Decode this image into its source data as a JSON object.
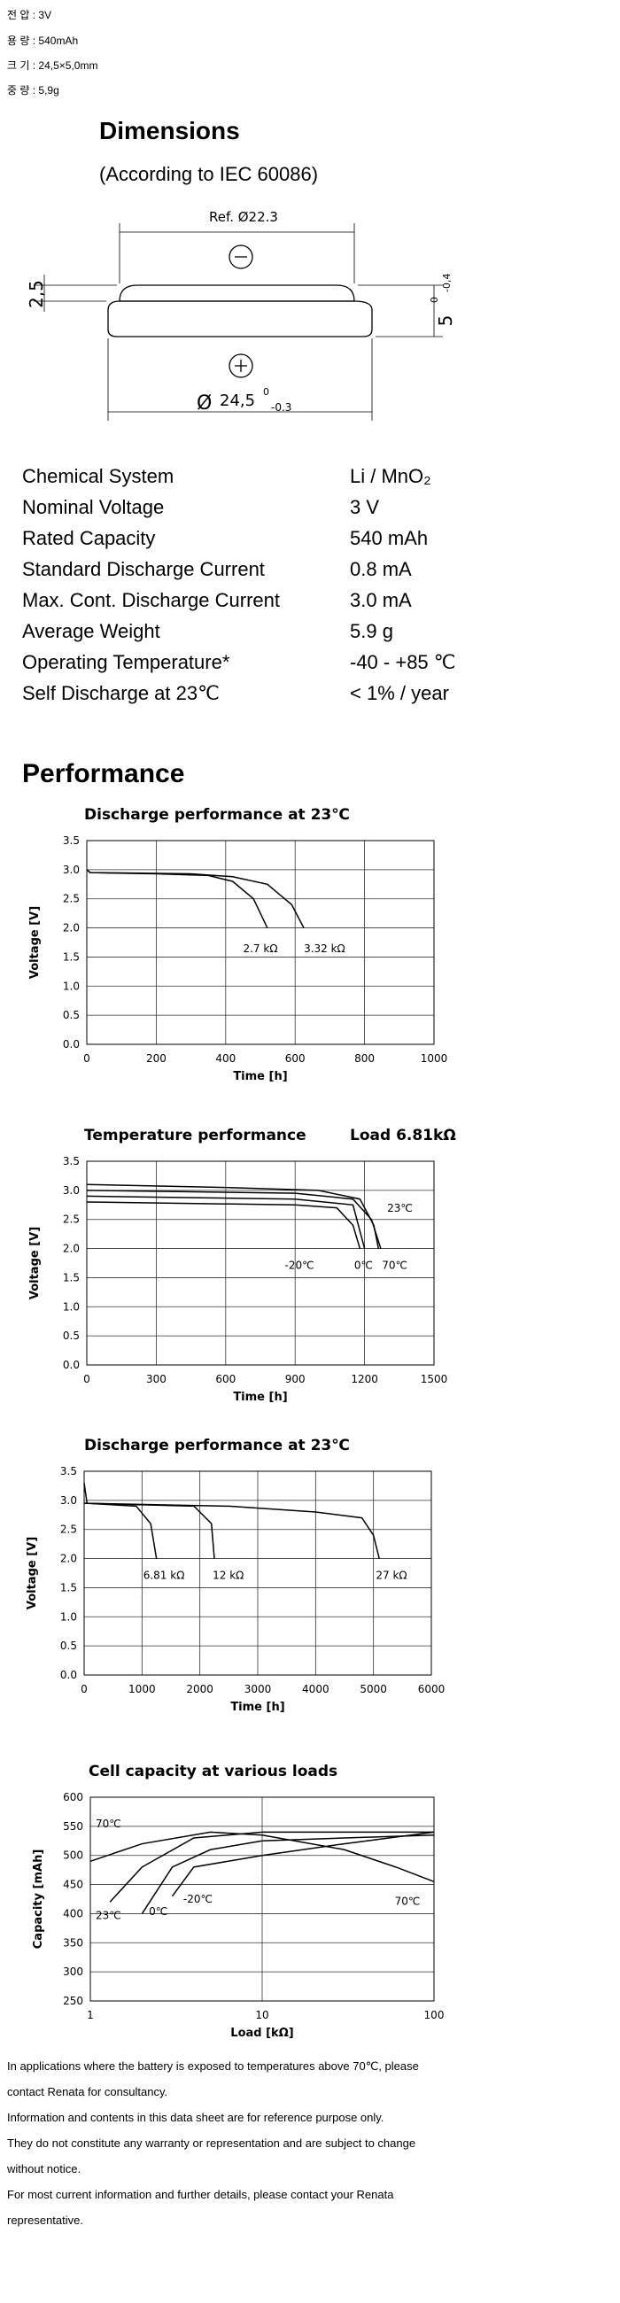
{
  "specs_korean": [
    "전 압 : 3V",
    "용 량 : 540mAh",
    "크 기 : 24,5×5,0mm",
    "중 량 : 5,9g"
  ],
  "dimensions": {
    "title": "Dimensions",
    "subtitle": "(According to IEC 60086)",
    "ref_diameter": "Ref. Ø22.3",
    "cap_height": "2,5",
    "height": "5",
    "height_tol_upper": "0",
    "height_tol_lower": "-0,4",
    "diameter_symbol": "Ø",
    "diameter": "24,5",
    "diameter_tol_upper": "0",
    "diameter_tol_lower": "-0.3"
  },
  "properties": [
    [
      "Chemical System",
      "Li / MnO₂"
    ],
    [
      "Nominal Voltage",
      "3 V"
    ],
    [
      "Rated Capacity",
      "540 mAh"
    ],
    [
      "Standard Discharge Current",
      "0.8 mA"
    ],
    [
      "Max. Cont. Discharge Current",
      "3.0 mA"
    ],
    [
      "Average Weight",
      "5.9 g"
    ],
    [
      "Operating Temperature*",
      "-40 - +85 ℃"
    ],
    [
      "Self Discharge at 23℃",
      "< 1% / year"
    ]
  ],
  "performance_title": "Performance",
  "chart_data": [
    {
      "type": "line",
      "title": "Discharge performance at 23℃",
      "x_label": "Time [h]",
      "y_label": "Voltage [V]",
      "xlim": [
        0,
        1000
      ],
      "xticks": [
        0,
        200,
        400,
        600,
        800,
        1000
      ],
      "ylim": [
        0,
        3.5
      ],
      "yticks": [
        {
          "value": 0,
          "label": "0.0"
        },
        0.5,
        {
          "value": 1,
          "label": "1.0"
        },
        1.5,
        {
          "value": 2,
          "label": "2.0"
        },
        2.5,
        {
          "value": 3,
          "label": "3.0"
        },
        3.5
      ],
      "grid": true,
      "series": [
        {
          "name": "2.7 kΩ",
          "color": "#000000",
          "x": [
            0,
            10,
            200,
            350,
            420,
            480,
            520
          ],
          "values": [
            3.0,
            2.95,
            2.93,
            2.9,
            2.8,
            2.5,
            2.0
          ]
        },
        {
          "name": "3.32 kΩ",
          "color": "#000000",
          "x": [
            0,
            10,
            300,
            420,
            520,
            590,
            625
          ],
          "values": [
            3.0,
            2.95,
            2.93,
            2.88,
            2.75,
            2.4,
            2.0
          ]
        }
      ]
    },
    {
      "type": "line",
      "title": "Temperature performance",
      "subtitle": "Load 6.81kΩ",
      "x_label": "Time [h]",
      "y_label": "Voltage [V]",
      "xlim": [
        0,
        1500
      ],
      "xticks": [
        0,
        300,
        600,
        900,
        1200,
        1500
      ],
      "ylim": [
        0,
        3.5
      ],
      "yticks": [
        {
          "value": 0,
          "label": "0.0"
        },
        0.5,
        {
          "value": 1,
          "label": "1.0"
        },
        1.5,
        {
          "value": 2,
          "label": "2.0"
        },
        2.5,
        {
          "value": 3,
          "label": "3.0"
        },
        3.5
      ],
      "grid": true,
      "series": [
        {
          "name": "23℃",
          "color": "#000000",
          "x": [
            0,
            600,
            1000,
            1180,
            1240,
            1260
          ],
          "values": [
            3.1,
            3.05,
            3.0,
            2.85,
            2.4,
            2.0
          ]
        },
        {
          "name": "-20℃",
          "color": "#000000",
          "x": [
            0,
            900,
            1080,
            1150,
            1180
          ],
          "values": [
            2.8,
            2.75,
            2.7,
            2.4,
            2.0
          ]
        },
        {
          "name": "0℃",
          "color": "#000000",
          "x": [
            0,
            900,
            1150,
            1200
          ],
          "values": [
            2.9,
            2.85,
            2.75,
            2.0
          ]
        },
        {
          "name": "70℃",
          "color": "#000000",
          "x": [
            0,
            900,
            1150,
            1230,
            1270
          ],
          "values": [
            3.0,
            2.95,
            2.85,
            2.5,
            2.0
          ]
        }
      ]
    },
    {
      "type": "line",
      "title": "Discharge performance at 23℃",
      "x_label": "Time [h]",
      "y_label": "Voltage [V]",
      "xlim": [
        0,
        6000
      ],
      "xticks": [
        0,
        1000,
        2000,
        3000,
        4000,
        5000,
        6000
      ],
      "ylim": [
        0,
        3.5
      ],
      "yticks": [
        {
          "value": 0,
          "label": "0.0"
        },
        0.5,
        {
          "value": 1,
          "label": "1.0"
        },
        1.5,
        {
          "value": 2,
          "label": "2.0"
        },
        2.5,
        {
          "value": 3,
          "label": "3.0"
        },
        3.5
      ],
      "grid": true,
      "series": [
        {
          "name": "6.81 kΩ",
          "color": "#000000",
          "x": [
            0,
            50,
            900,
            1150,
            1250
          ],
          "values": [
            3.3,
            2.95,
            2.9,
            2.6,
            2.0
          ]
        },
        {
          "name": "12 kΩ",
          "color": "#000000",
          "x": [
            0,
            1900,
            2200,
            2250
          ],
          "values": [
            2.95,
            2.9,
            2.6,
            2.0
          ]
        },
        {
          "name": "27 kΩ",
          "color": "#000000",
          "x": [
            0,
            2500,
            4000,
            4800,
            5000,
            5100
          ],
          "values": [
            2.95,
            2.9,
            2.8,
            2.7,
            2.4,
            2.0
          ]
        }
      ]
    },
    {
      "type": "line",
      "title": "Cell capacity at various loads",
      "x_label": "Load [kΩ]",
      "y_label": "Capacity [mAh]",
      "log_x": true,
      "xlim": [
        1,
        100
      ],
      "xticks": [
        1,
        10,
        100
      ],
      "ylim": [
        250,
        600
      ],
      "yticks": [
        250,
        300,
        350,
        400,
        450,
        500,
        550,
        600
      ],
      "grid": true,
      "series": [
        {
          "name": "70℃",
          "color": "#000000",
          "x": [
            1,
            2,
            5,
            10,
            30,
            60,
            100
          ],
          "values": [
            490,
            520,
            540,
            535,
            510,
            480,
            455
          ]
        },
        {
          "name": "23℃",
          "color": "#000000",
          "x": [
            1.3,
            2,
            4,
            10,
            100
          ],
          "values": [
            420,
            480,
            530,
            540,
            540
          ]
        },
        {
          "name": "0℃",
          "color": "#000000",
          "x": [
            2,
            3,
            5,
            10,
            30,
            100
          ],
          "values": [
            400,
            480,
            510,
            525,
            530,
            535
          ]
        },
        {
          "name": "-20℃",
          "color": "#000000",
          "x": [
            3,
            4,
            10,
            30,
            100
          ],
          "values": [
            430,
            480,
            500,
            520,
            540
          ]
        }
      ]
    }
  ],
  "notes": [
    "In applications where the battery is exposed to temperatures above 70℃, please contact Renata for consultancy.",
    "Information and contents in this data sheet are for reference purpose only.",
    "They do not constitute any warranty or representation and are subject to change without notice.",
    "For most current information and further details, please contact your Renata representative."
  ]
}
